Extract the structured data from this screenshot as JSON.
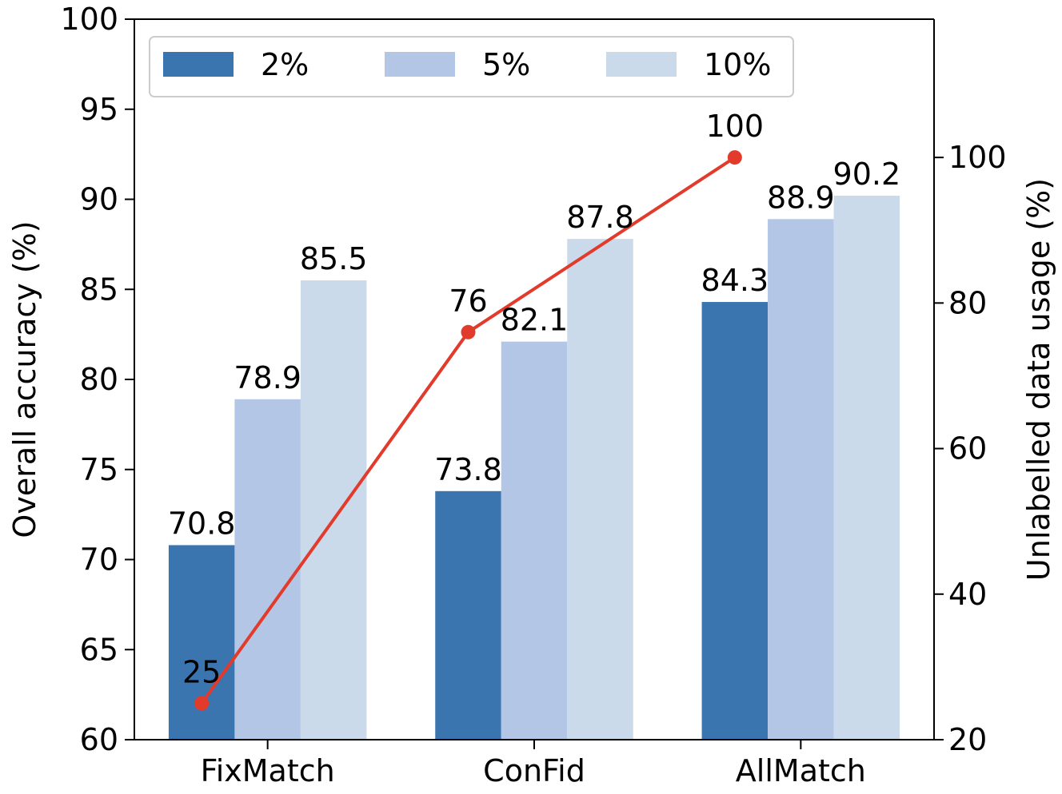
{
  "chart_data": {
    "type": "bar",
    "categories": [
      "FixMatch",
      "ConFid",
      "AllMatch"
    ],
    "series": [
      {
        "name": "2%",
        "values": [
          70.8,
          73.8,
          84.3
        ],
        "color": "#3b75af"
      },
      {
        "name": "5%",
        "values": [
          78.9,
          82.1,
          88.9
        ],
        "color": "#b3c6e5"
      },
      {
        "name": "10%",
        "values": [
          85.5,
          87.8,
          90.2
        ],
        "color": "#cadaeb"
      }
    ],
    "ylabel": "Overall accuracy (%)",
    "ylim": [
      60,
      100
    ],
    "yticks": [
      60,
      65,
      70,
      75,
      80,
      85,
      90,
      95,
      100
    ],
    "legend_position": "top-left",
    "grid": false,
    "secondary_axis": {
      "type": "line",
      "label": "Unlabelled data usage (%)",
      "ylim": [
        20,
        119
      ],
      "yticks": [
        20,
        40,
        60,
        80,
        100
      ],
      "values": [
        25,
        76,
        100
      ],
      "point_labels": [
        "25",
        "76",
        "100"
      ],
      "color": "#e23a2b"
    }
  }
}
